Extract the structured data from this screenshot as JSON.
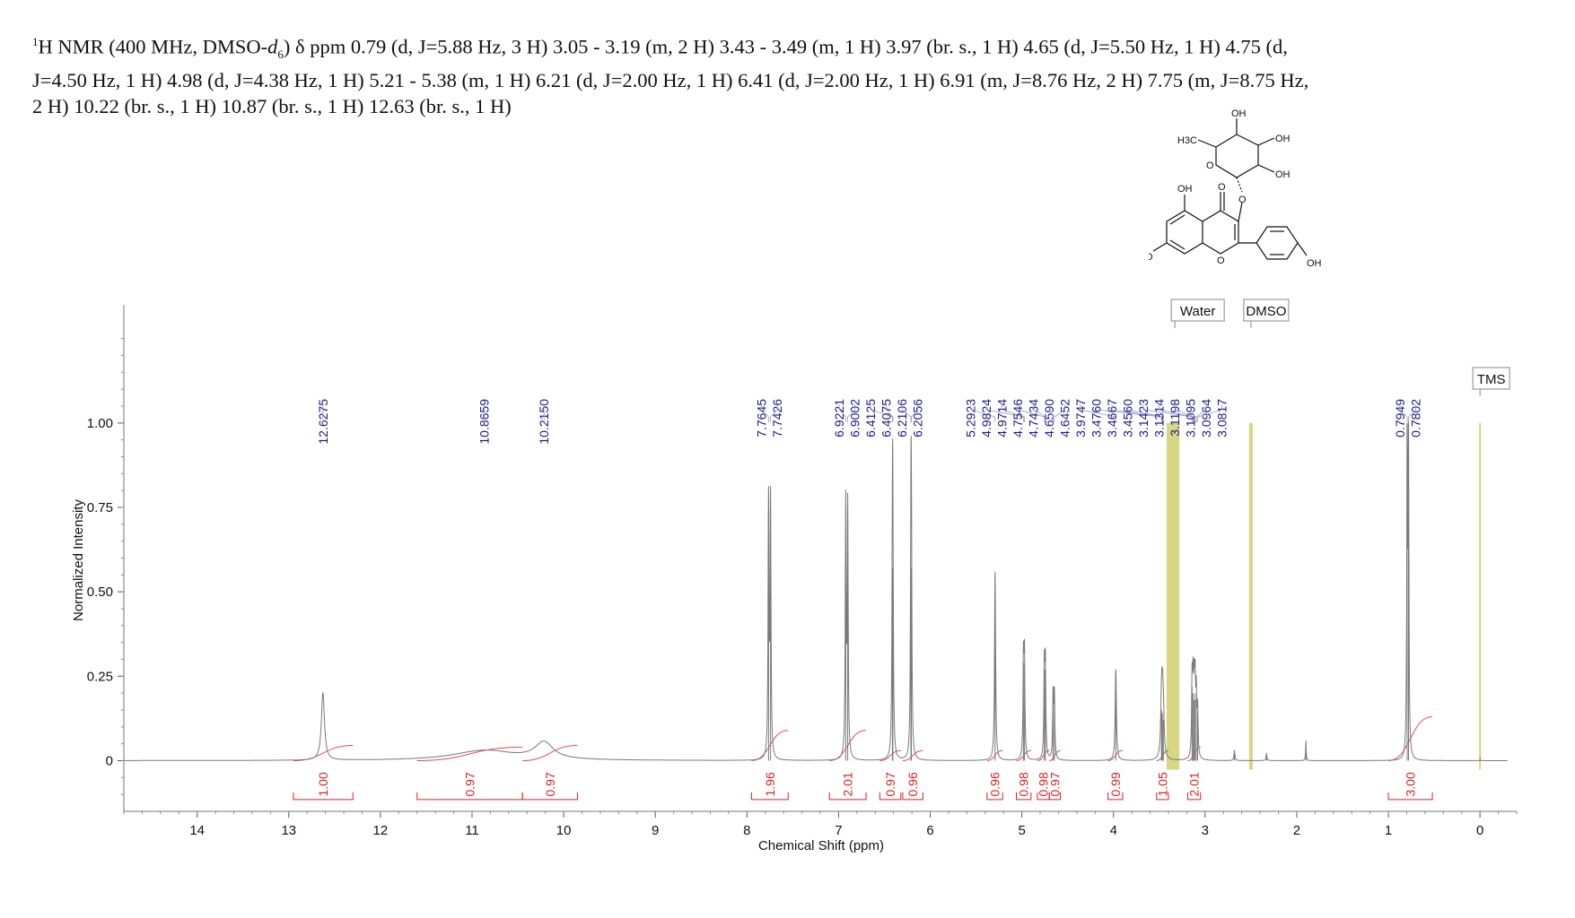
{
  "header": {
    "sup": "1",
    "part1": "H NMR (400 MHz, DMSO-",
    "d": "d",
    "sub": "6",
    "part2": ") δ ppm 0.79 (d, J=5.88 Hz, 3 H) 3.05 - 3.19 (m, 2 H) 3.43 - 3.49 (m, 1 H) 3.97 (br. s., 1 H) 4.65 (d,  J=5.50 Hz, 1 H) 4.75 (d,",
    "line2": "J=4.50 Hz, 1 H) 4.98 (d, J=4.38 Hz, 1 H) 5.21 - 5.38 (m, 1 H) 6.21 (d, J=2.00 Hz, 1 H) 6.41 (d, J=2.00 Hz, 1 H) 6.91 (m, J=8.76 Hz, 2 H) 7.75 (m, J=8.75 Hz,",
    "line3": "2 H) 10.22 (br. s., 1 H) 10.87 (br. s., 1 H) 12.63 (br. s., 1 H)"
  },
  "structure_labels": {
    "oh_top": "OH",
    "oh_right1": "OH",
    "oh_right2": "OH",
    "ch3": "H3C",
    "o_ring": "O",
    "o_glyc": "O",
    "oh5": "OH",
    "o_carbonyl": "O",
    "ho7": "HO",
    "o_pyran": "O",
    "oh_phenyl": "OH"
  },
  "chart_data": {
    "type": "line",
    "xlabel": "Chemical Shift (ppm)",
    "ylabel": "Normalized Intensity",
    "xlim": [
      14.8,
      -0.4
    ],
    "ylim": [
      -0.15,
      1.35
    ],
    "x_axis_reversed": true,
    "xticks": [
      "14",
      "13",
      "12",
      "11",
      "10",
      "9",
      "8",
      "7",
      "6",
      "5",
      "4",
      "3",
      "2",
      "1",
      "0"
    ],
    "yticks": [
      "0",
      "0.25",
      "0.50",
      "0.75",
      "1.00"
    ],
    "grid": false,
    "colors": {
      "spectrum": "#7a7a7a",
      "peak_labels": "#1a1a8c",
      "integrals": "#e02020",
      "solvent_band": "#c8c85a"
    },
    "peaks": [
      {
        "ppm": 12.6275,
        "height": 0.2,
        "width": 0.02
      },
      {
        "ppm": 10.8659,
        "height": 0.03,
        "width": 0.4
      },
      {
        "ppm": 10.215,
        "height": 0.05,
        "width": 0.12
      },
      {
        "ppm": 7.7645,
        "height": 0.76,
        "width": 0.006
      },
      {
        "ppm": 7.7426,
        "height": 0.76,
        "width": 0.006
      },
      {
        "ppm": 6.9221,
        "height": 0.75,
        "width": 0.006
      },
      {
        "ppm": 6.9002,
        "height": 0.74,
        "width": 0.006
      },
      {
        "ppm": 6.4125,
        "height": 0.57,
        "width": 0.006
      },
      {
        "ppm": 6.4075,
        "height": 0.55,
        "width": 0.006
      },
      {
        "ppm": 6.2106,
        "height": 0.57,
        "width": 0.006
      },
      {
        "ppm": 6.2056,
        "height": 0.56,
        "width": 0.006
      },
      {
        "ppm": 5.2923,
        "height": 0.56,
        "width": 0.007
      },
      {
        "ppm": 4.9824,
        "height": 0.29,
        "width": 0.006
      },
      {
        "ppm": 4.9714,
        "height": 0.29,
        "width": 0.006
      },
      {
        "ppm": 4.7546,
        "height": 0.27,
        "width": 0.006
      },
      {
        "ppm": 4.7434,
        "height": 0.27,
        "width": 0.006
      },
      {
        "ppm": 4.659,
        "height": 0.19,
        "width": 0.006
      },
      {
        "ppm": 4.6452,
        "height": 0.19,
        "width": 0.006
      },
      {
        "ppm": 3.9747,
        "height": 0.27,
        "width": 0.008
      },
      {
        "ppm": 3.476,
        "height": 0.15,
        "width": 0.01
      },
      {
        "ppm": 3.4667,
        "height": 0.14,
        "width": 0.01
      },
      {
        "ppm": 3.456,
        "height": 0.12,
        "width": 0.01
      },
      {
        "ppm": 3.1423,
        "height": 0.22,
        "width": 0.006
      },
      {
        "ppm": 3.1314,
        "height": 0.2,
        "width": 0.006
      },
      {
        "ppm": 3.1198,
        "height": 0.18,
        "width": 0.006
      },
      {
        "ppm": 3.1095,
        "height": 0.2,
        "width": 0.006
      },
      {
        "ppm": 3.0964,
        "height": 0.18,
        "width": 0.006
      },
      {
        "ppm": 3.0817,
        "height": 0.14,
        "width": 0.006
      },
      {
        "ppm": 2.68,
        "height": 0.03,
        "width": 0.006
      },
      {
        "ppm": 2.33,
        "height": 0.02,
        "width": 0.006
      },
      {
        "ppm": 1.9,
        "height": 0.06,
        "width": 0.004
      },
      {
        "ppm": 0.7949,
        "height": 1.0,
        "width": 0.005
      },
      {
        "ppm": 0.7802,
        "height": 0.98,
        "width": 0.005
      }
    ],
    "peak_labels": [
      "12.6275",
      "10.8659",
      "10.2150",
      "7.7645",
      "7.7426",
      "6.9221",
      "6.9002",
      "6.4125",
      "6.4075",
      "6.2106",
      "6.2056",
      "5.2923",
      "4.9824",
      "4.9714",
      "4.7546",
      "4.7434",
      "4.6590",
      "4.6452",
      "3.9747",
      "3.4760",
      "3.4667",
      "3.4560",
      "3.1423",
      "3.1314",
      "3.1198",
      "3.1095",
      "3.0964",
      "3.0817",
      "0.7949",
      "0.7802"
    ],
    "integrals": [
      {
        "from": 12.95,
        "to": 12.3,
        "value": "1.00",
        "curve_top": 0.045
      },
      {
        "from": 11.6,
        "to": 10.45,
        "value": "0.97",
        "curve_top": 0.04
      },
      {
        "from": 10.45,
        "to": 9.85,
        "value": "0.97",
        "curve_top": 0.045
      },
      {
        "from": 7.95,
        "to": 7.55,
        "value": "1.96",
        "curve_top": 0.09
      },
      {
        "from": 7.1,
        "to": 6.7,
        "value": "2.01",
        "curve_top": 0.09
      },
      {
        "from": 6.55,
        "to": 6.32,
        "value": "0.97",
        "curve_top": 0.03
      },
      {
        "from": 6.3,
        "to": 6.08,
        "value": "0.96",
        "curve_top": 0.03
      },
      {
        "from": 5.38,
        "to": 5.21,
        "value": "0.96",
        "curve_top": 0.03
      },
      {
        "from": 5.06,
        "to": 4.9,
        "value": "0.98",
        "curve_top": 0.03
      },
      {
        "from": 4.83,
        "to": 4.7,
        "value": "0.98",
        "curve_top": 0.03
      },
      {
        "from": 4.7,
        "to": 4.58,
        "value": "0.97",
        "curve_top": 0.03
      },
      {
        "from": 4.06,
        "to": 3.9,
        "value": "0.99",
        "curve_top": 0.03
      },
      {
        "from": 3.53,
        "to": 3.4,
        "value": "1.05",
        "curve_top": 0.03
      },
      {
        "from": 3.19,
        "to": 3.05,
        "value": "2.01",
        "curve_top": 0.04
      },
      {
        "from": 1.0,
        "to": 0.52,
        "value": "3.00",
        "curve_top": 0.13
      }
    ],
    "solvent_bands": [
      {
        "from": 3.42,
        "to": 3.28
      },
      {
        "from": 2.52,
        "to": 2.48
      },
      {
        "from": 0.01,
        "to": -0.01
      }
    ],
    "annotations": [
      {
        "text": "Water",
        "ppm": 3.33
      },
      {
        "text": "DMSO",
        "ppm": 2.5
      },
      {
        "text": "TMS",
        "ppm": 0.0
      }
    ]
  }
}
